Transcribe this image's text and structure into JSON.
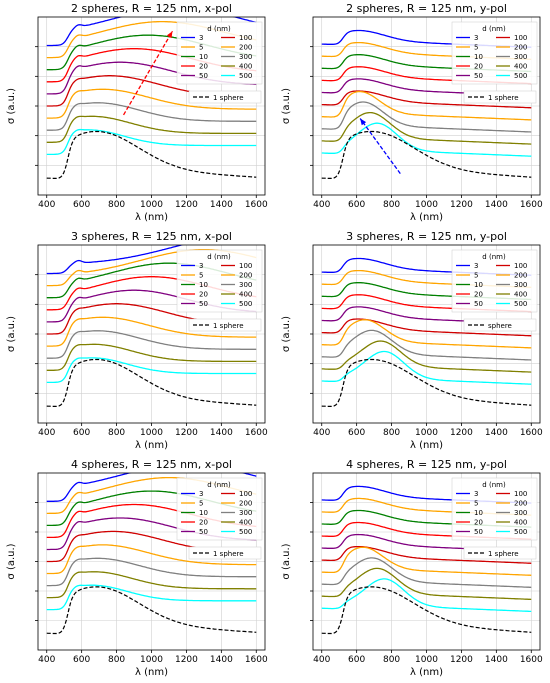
{
  "colors": {
    "3": "#0000ff",
    "5": "#ffa500",
    "10": "#008000",
    "20": "#ff0000",
    "50": "#800080",
    "100": "#d00000",
    "200": "#ffa500",
    "300": "#808080",
    "400": "#808000",
    "500": "#00ffff",
    "1 sphere": "#000000"
  },
  "legend": {
    "title": "d (nm)",
    "col1": [
      "3",
      "5",
      "10",
      "20",
      "50"
    ],
    "col2": [
      "100",
      "200",
      "300",
      "400",
      "500"
    ],
    "reference_top": "1 sphere",
    "reference_3y": "sphere"
  },
  "chart_data": [
    {
      "type": "line",
      "title": "2 spheres, R = 125 nm, x-pol",
      "xlabel": "λ (nm)",
      "ylabel": "σ (a.u.)",
      "xlim": [
        350,
        1650
      ],
      "xticks": [
        400,
        600,
        800,
        1000,
        1200,
        1400,
        1600
      ],
      "grid": true,
      "legend_placement": "top-right",
      "series_order": [
        "3",
        "5",
        "10",
        "20",
        "50",
        "100",
        "200",
        "300",
        "400",
        "500"
      ],
      "peaks": [
        1150,
        1060,
        980,
        900,
        820,
        760,
        720,
        690,
        660,
        640
      ],
      "arrow": {
        "from": [
          840,
          0.45
        ],
        "to": [
          1120,
          0.92
        ],
        "color": "#ff0000"
      },
      "reference_legend": "1 sphere"
    },
    {
      "type": "line",
      "title": "2 spheres, R = 125 nm, y-pol",
      "xlabel": "λ (nm)",
      "ylabel": "σ (a.u.)",
      "xlim": [
        350,
        1650
      ],
      "xticks": [
        400,
        600,
        800,
        1000,
        1200,
        1400,
        1600
      ],
      "grid": true,
      "legend_placement": "top-right",
      "series_order": [
        "3",
        "5",
        "10",
        "20",
        "50",
        "100",
        "200",
        "300",
        "400",
        "500"
      ],
      "peaks": [
        620,
        620,
        620,
        620,
        620,
        620,
        620,
        640,
        680,
        720
      ],
      "arrow": {
        "from": [
          850,
          0.12
        ],
        "to": [
          620,
          0.43
        ],
        "color": "#0000ff"
      },
      "reference_legend": "1 sphere"
    },
    {
      "type": "line",
      "title": "3 spheres, R = 125 nm, x-pol",
      "xlabel": "λ (nm)",
      "ylabel": "σ (a.u.)",
      "xlim": [
        350,
        1650
      ],
      "xticks": [
        400,
        600,
        800,
        1000,
        1200,
        1400,
        1600
      ],
      "grid": true,
      "legend_placement": "top-right",
      "series_order": [
        "3",
        "5",
        "10",
        "20",
        "50",
        "100",
        "200",
        "300",
        "400",
        "500"
      ],
      "peaks": [
        1500,
        1300,
        1100,
        1000,
        900,
        800,
        720,
        690,
        670,
        660
      ],
      "reference_legend": "1 sphere"
    },
    {
      "type": "line",
      "title": "3 spheres, R = 125 nm, y-pol",
      "xlabel": "λ (nm)",
      "ylabel": "σ (a.u.)",
      "xlim": [
        350,
        1650
      ],
      "xticks": [
        400,
        600,
        800,
        1000,
        1200,
        1400,
        1600
      ],
      "grid": true,
      "legend_placement": "top-right",
      "series_order": [
        "3",
        "5",
        "10",
        "20",
        "50",
        "100",
        "200",
        "300",
        "400",
        "500"
      ],
      "peaks": [
        620,
        620,
        620,
        620,
        620,
        620,
        650,
        690,
        740,
        760
      ],
      "reference_legend": "sphere"
    },
    {
      "type": "line",
      "title": "4 spheres, R = 125 nm, x-pol",
      "xlabel": "λ (nm)",
      "ylabel": "σ (a.u.)",
      "xlim": [
        350,
        1650
      ],
      "xticks": [
        400,
        600,
        800,
        1000,
        1200,
        1400,
        1600
      ],
      "grid": true,
      "legend_placement": "top-right",
      "series_order": [
        "3",
        "5",
        "10",
        "20",
        "50",
        "100",
        "200",
        "300",
        "400",
        "500"
      ],
      "peaks": [
        1200,
        1100,
        1000,
        900,
        820,
        780,
        720,
        690,
        670,
        660
      ],
      "reference_legend": "1 sphere"
    },
    {
      "type": "line",
      "title": "4 spheres, R = 125 nm, y-pol",
      "xlabel": "λ (nm)",
      "ylabel": "σ (a.u.)",
      "xlim": [
        350,
        1650
      ],
      "xticks": [
        400,
        600,
        800,
        1000,
        1200,
        1400,
        1600
      ],
      "grid": true,
      "legend_placement": "top-right",
      "series_order": [
        "3",
        "5",
        "10",
        "20",
        "50",
        "100",
        "200",
        "300",
        "400",
        "500"
      ],
      "peaks": [
        620,
        620,
        620,
        620,
        620,
        620,
        640,
        690,
        720,
        760
      ],
      "reference_legend": "1 sphere"
    }
  ]
}
